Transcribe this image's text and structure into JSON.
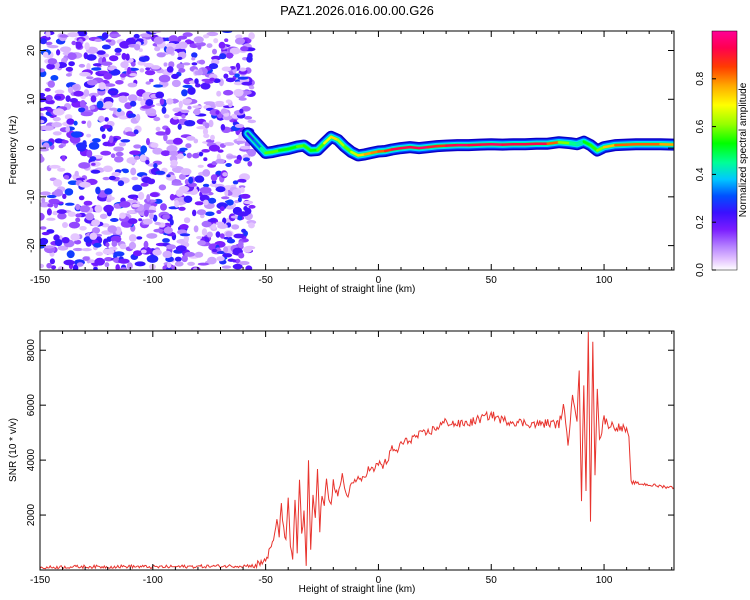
{
  "title": "PAZ1.2026.016.00.00.G26",
  "chart_data": [
    {
      "type": "heatmap",
      "name": "spectrogram",
      "xlabel": "Height of straight line (km)",
      "ylabel": "Frequency (Hz)",
      "xlim": [
        -150,
        131
      ],
      "ylim": [
        -25,
        24
      ],
      "xticks": [
        -150,
        -100,
        -50,
        0,
        50,
        100
      ],
      "yticks": [
        -20,
        -10,
        0,
        10,
        20
      ],
      "noise_region_x": [
        -150,
        -56
      ],
      "ridge": {
        "x": [
          -58,
          -55,
          -52,
          -50,
          -47,
          -44,
          -40,
          -36,
          -33,
          -30,
          -27,
          -24,
          -21,
          -18,
          -15,
          -12,
          -9,
          -6,
          -3,
          0,
          3,
          6,
          10,
          14,
          18,
          22,
          26,
          30,
          35,
          40,
          45,
          50,
          55,
          60,
          65,
          70,
          75,
          80,
          85,
          88,
          91,
          94,
          97,
          100,
          105,
          110,
          115,
          120,
          125,
          131
        ],
        "freq": [
          3,
          1.5,
          0,
          -1,
          -0.8,
          -0.5,
          -0.2,
          0.3,
          0.5,
          -0.5,
          -0.4,
          1.0,
          2.3,
          1.7,
          0.3,
          -0.8,
          -1.5,
          -1.3,
          -1.0,
          -0.7,
          -0.6,
          -0.3,
          0,
          0.2,
          0,
          0.2,
          0.4,
          0.5,
          0.6,
          0.6,
          0.7,
          0.8,
          0.7,
          0.8,
          0.8,
          0.9,
          0.9,
          1.2,
          1.0,
          0.8,
          1.3,
          0.6,
          -0.5,
          0.2,
          0.6,
          0.7,
          0.8,
          0.8,
          0.8,
          0.7
        ],
        "amplitude": [
          0.25,
          0.3,
          0.35,
          0.55,
          0.6,
          0.55,
          0.5,
          0.55,
          0.6,
          0.5,
          0.55,
          0.6,
          0.75,
          0.7,
          0.55,
          0.6,
          0.7,
          0.75,
          0.8,
          0.8,
          0.85,
          0.9,
          0.95,
          0.9,
          0.95,
          0.95,
          0.85,
          0.9,
          0.95,
          0.95,
          0.9,
          0.95,
          0.95,
          0.9,
          0.95,
          0.9,
          0.95,
          0.7,
          0.5,
          0.4,
          0.45,
          0.6,
          0.5,
          0.7,
          0.8,
          0.85,
          0.8,
          0.85,
          0.8,
          0.75
        ]
      },
      "colorbar": {
        "label": "Normalized spectral amplitude",
        "range": [
          0,
          1
        ],
        "ticks": [
          "0.0",
          "0.2",
          "0.4",
          "0.6",
          "0.8"
        ]
      }
    },
    {
      "type": "line",
      "name": "snr",
      "xlabel": "Height of straight line (km)",
      "ylabel": "SNR (10 * v/v)",
      "xlim": [
        -150,
        131
      ],
      "ylim": [
        0,
        8700
      ],
      "xticks": [
        -150,
        -100,
        -50,
        0,
        50,
        100
      ],
      "yticks": [
        2000,
        4000,
        6000,
        8000
      ],
      "color": "#e8342e",
      "series": [
        {
          "name": "SNR",
          "x": [
            -150,
            -140,
            -130,
            -120,
            -110,
            -100,
            -90,
            -80,
            -70,
            -60,
            -55,
            -52,
            -50,
            -48,
            -46,
            -45,
            -44,
            -43,
            -42,
            -41,
            -40,
            -39,
            -38,
            -37,
            -36,
            -35,
            -34,
            -33,
            -32,
            -31,
            -30,
            -29,
            -28,
            -27,
            -26,
            -25,
            -24,
            -23,
            -22,
            -21,
            -20,
            -18,
            -16,
            -14,
            -12,
            -10,
            -8,
            -6,
            -4,
            -2,
            0,
            2,
            4,
            6,
            8,
            10,
            12,
            15,
            18,
            22,
            26,
            30,
            35,
            40,
            45,
            50,
            55,
            60,
            65,
            70,
            75,
            80,
            82,
            84,
            86,
            88,
            89,
            90,
            91,
            92,
            93,
            94,
            95,
            96,
            97,
            98,
            100,
            102,
            104,
            106,
            108,
            110,
            111,
            112,
            115,
            120,
            125,
            131
          ],
          "y": [
            80,
            110,
            120,
            115,
            130,
            110,
            120,
            130,
            140,
            150,
            160,
            240,
            400,
            700,
            1200,
            1900,
            1300,
            2300,
            1600,
            1000,
            2500,
            900,
            400,
            2600,
            700,
            3300,
            1200,
            2100,
            200,
            3900,
            600,
            2800,
            1800,
            3700,
            1500,
            2800,
            2200,
            3300,
            2700,
            2500,
            3200,
            2600,
            3400,
            2700,
            3100,
            3300,
            3200,
            3500,
            3700,
            3600,
            3900,
            3800,
            4000,
            4400,
            4300,
            4600,
            4650,
            4800,
            4900,
            5000,
            5200,
            5400,
            5300,
            5350,
            5500,
            5650,
            5450,
            5400,
            5350,
            5300,
            5350,
            5300,
            6000,
            4500,
            6500,
            5500,
            7200,
            2400,
            6800,
            3000,
            8600,
            1900,
            8200,
            3600,
            6700,
            4700,
            5500,
            5300,
            5250,
            5200,
            5150,
            5100,
            4800,
            3200,
            3150,
            3100,
            3050,
            3000
          ]
        }
      ]
    }
  ]
}
